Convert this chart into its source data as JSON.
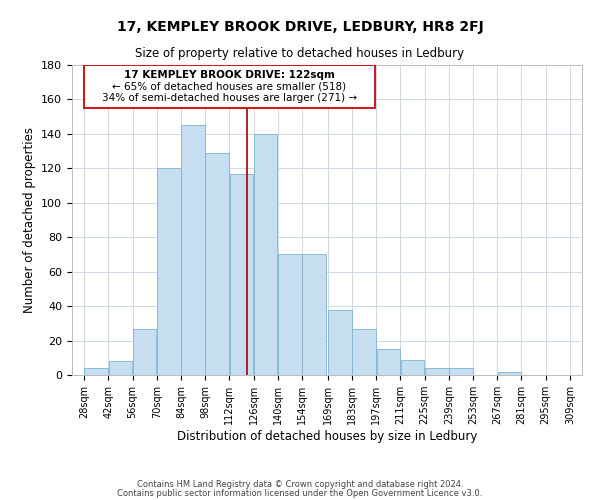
{
  "title": "17, KEMPLEY BROOK DRIVE, LEDBURY, HR8 2FJ",
  "subtitle": "Size of property relative to detached houses in Ledbury",
  "xlabel": "Distribution of detached houses by size in Ledbury",
  "ylabel": "Number of detached properties",
  "bar_left_edges": [
    28,
    42,
    56,
    70,
    84,
    98,
    112,
    126,
    140,
    154,
    169,
    183,
    197,
    211,
    225,
    239,
    253,
    267,
    281,
    295
  ],
  "bar_heights": [
    4,
    8,
    27,
    120,
    145,
    129,
    117,
    140,
    70,
    70,
    38,
    27,
    15,
    9,
    4,
    4,
    0,
    2,
    0,
    0
  ],
  "bar_color": "#c6dff0",
  "bar_edgecolor": "#7fb3d3",
  "vline_x": 122,
  "vline_color": "#aa0000",
  "tick_labels": [
    "28sqm",
    "42sqm",
    "56sqm",
    "70sqm",
    "84sqm",
    "98sqm",
    "112sqm",
    "126sqm",
    "140sqm",
    "154sqm",
    "169sqm",
    "183sqm",
    "197sqm",
    "211sqm",
    "225sqm",
    "239sqm",
    "253sqm",
    "267sqm",
    "281sqm",
    "295sqm",
    "309sqm"
  ],
  "tick_positions": [
    28,
    42,
    56,
    70,
    84,
    98,
    112,
    126,
    140,
    154,
    169,
    183,
    197,
    211,
    225,
    239,
    253,
    267,
    281,
    295,
    309
  ],
  "ylim": [
    0,
    180
  ],
  "xlim": [
    21,
    316
  ],
  "yticks": [
    0,
    20,
    40,
    60,
    80,
    100,
    120,
    140,
    160,
    180
  ],
  "annotation_title": "17 KEMPLEY BROOK DRIVE: 122sqm",
  "annotation_line1": "← 65% of detached houses are smaller (518)",
  "annotation_line2": "34% of semi-detached houses are larger (271) →",
  "footer1": "Contains HM Land Registry data © Crown copyright and database right 2024.",
  "footer2": "Contains public sector information licensed under the Open Government Licence v3.0.",
  "background_color": "#ffffff",
  "grid_color": "#cdd9e5"
}
